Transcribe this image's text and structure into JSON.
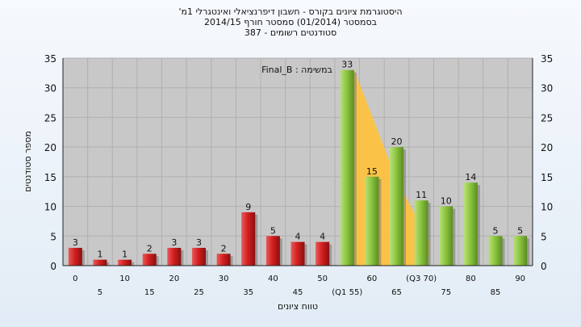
{
  "title_lines": [
    "'היסטוגרמת ציונים בקורס - חשבון דיפרנציאלי ואינטגרלי 1מ",
    "בסמסטר  (01/2014)  סמסטר חורף 2014/15",
    "387 - סטודנטים רשומים"
  ],
  "chart_data": {
    "type": "bar",
    "annotation": "Final_B : במשימה",
    "xlabel": "טווח ציונים",
    "ylabel": "מספר סטודנטים",
    "ylim": [
      0,
      35
    ],
    "yticks": [
      0,
      5,
      10,
      15,
      20,
      25,
      30,
      35
    ],
    "grid": true,
    "x": [
      0,
      5,
      10,
      15,
      20,
      25,
      30,
      35,
      40,
      45,
      50,
      55,
      60,
      65,
      70,
      75,
      80,
      85,
      90
    ],
    "tick_labels": [
      "0",
      "5",
      "10",
      "15",
      "20",
      "25",
      "30",
      "35",
      "40",
      "45",
      "50",
      "(Q1 55)",
      "60",
      "65",
      "(Q3 70)",
      "75",
      "80",
      "85",
      "90"
    ],
    "values": [
      3,
      1,
      1,
      2,
      3,
      3,
      2,
      9,
      5,
      4,
      4,
      33,
      15,
      20,
      11,
      10,
      14,
      5,
      5
    ],
    "colors": {
      "fail": "#d42020",
      "pass": "#8cc63f",
      "iqr_area": "#ffc23a",
      "plot_bg": "#c8c8c8"
    },
    "pass_from_index": 11,
    "iqr_band": {
      "from_x": 55,
      "to_x": 70
    }
  }
}
